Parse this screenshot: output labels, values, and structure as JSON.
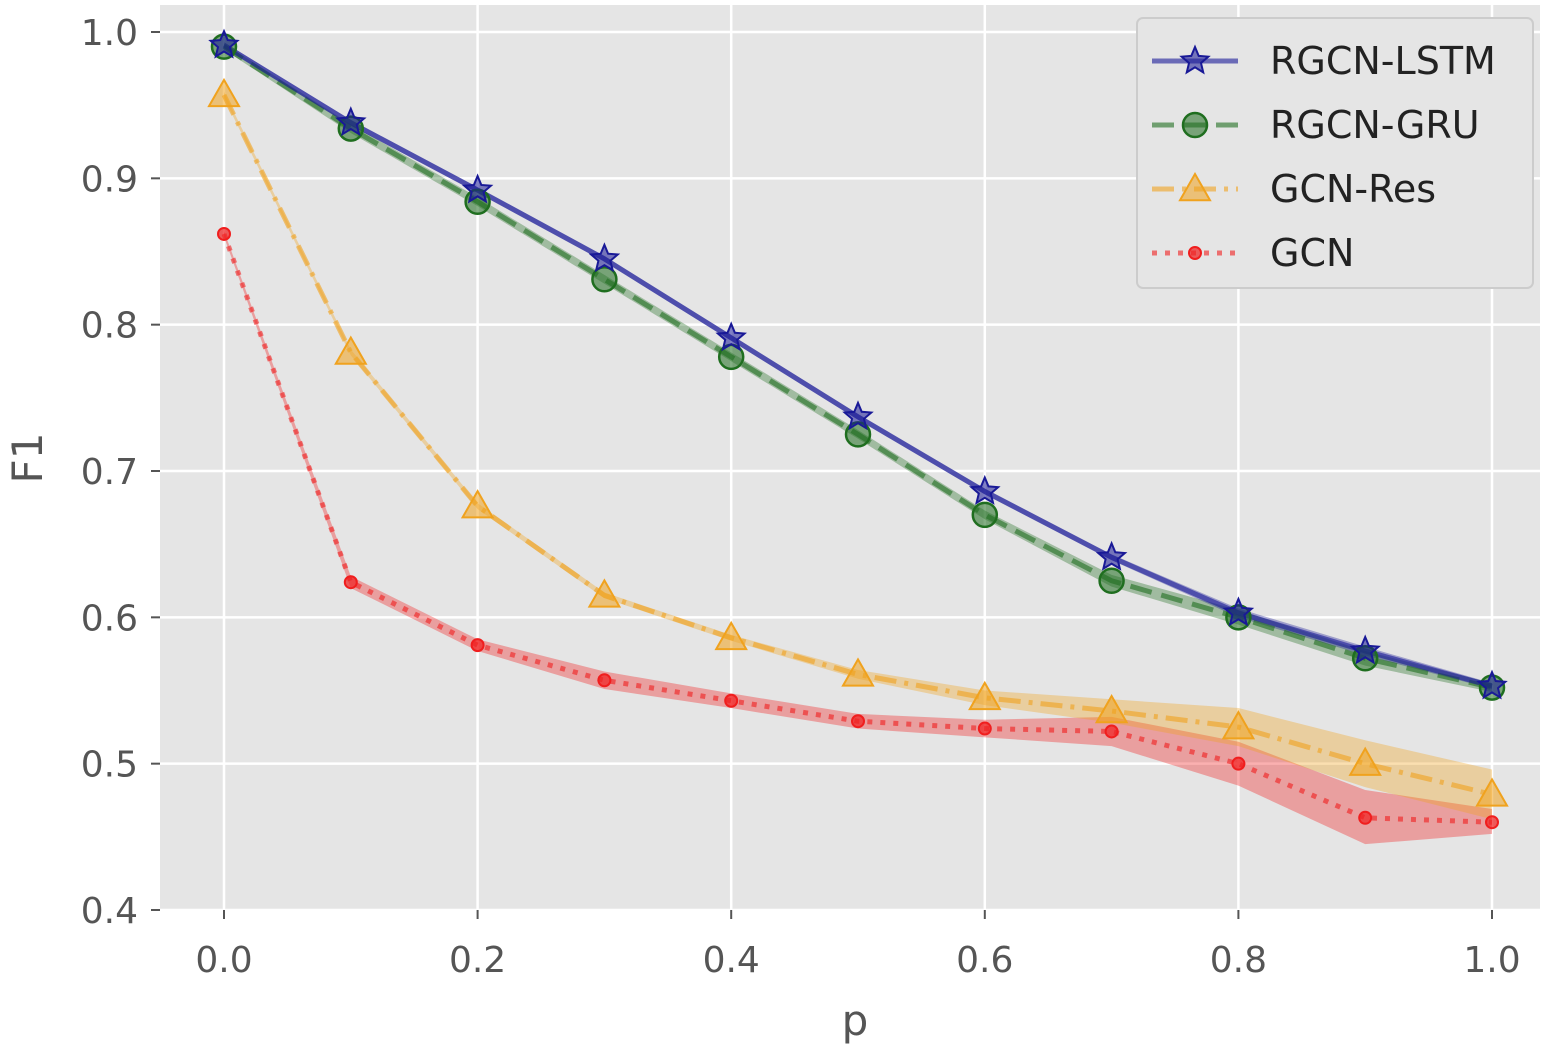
{
  "chart_data": {
    "type": "line",
    "title": "",
    "xlabel": "p",
    "ylabel": "F1",
    "xlim": [
      -0.05,
      1.05
    ],
    "ylim": [
      0.4,
      1.02
    ],
    "xticks": [
      "0.0",
      "0.2",
      "0.4",
      "0.6",
      "0.8",
      "1.0"
    ],
    "yticks": [
      "0.4",
      "0.5",
      "0.6",
      "0.7",
      "0.8",
      "0.9",
      "1.0"
    ],
    "grid": true,
    "legend_position": "top-right",
    "x": [
      0.0,
      0.1,
      0.2,
      0.3,
      0.4,
      0.5,
      0.6,
      0.7,
      0.8,
      0.9,
      1.0
    ],
    "series": [
      {
        "name": "RGCN-LSTM",
        "color": "#191997",
        "marker": "star",
        "linestyle": "solid",
        "values": [
          0.991,
          0.938,
          0.892,
          0.845,
          0.791,
          0.737,
          0.686,
          0.641,
          0.603,
          0.577,
          0.553
        ],
        "lower": [
          0.989,
          0.936,
          0.89,
          0.843,
          0.789,
          0.735,
          0.684,
          0.639,
          0.6,
          0.574,
          0.551
        ],
        "upper": [
          0.993,
          0.94,
          0.894,
          0.847,
          0.793,
          0.739,
          0.688,
          0.643,
          0.606,
          0.58,
          0.555
        ]
      },
      {
        "name": "RGCN-GRU",
        "color": "#1f6e1f",
        "marker": "circle",
        "linestyle": "dashed",
        "values": [
          0.99,
          0.934,
          0.884,
          0.831,
          0.778,
          0.725,
          0.67,
          0.625,
          0.6,
          0.572,
          0.552
        ],
        "lower": [
          0.988,
          0.931,
          0.881,
          0.828,
          0.775,
          0.722,
          0.667,
          0.621,
          0.595,
          0.567,
          0.549
        ],
        "upper": [
          0.992,
          0.937,
          0.887,
          0.834,
          0.781,
          0.728,
          0.673,
          0.629,
          0.605,
          0.577,
          0.555
        ]
      },
      {
        "name": "GCN-Res",
        "color": "#f0a21e",
        "marker": "triangle",
        "linestyle": "dashdot",
        "values": [
          0.957,
          0.781,
          0.676,
          0.615,
          0.586,
          0.561,
          0.545,
          0.536,
          0.525,
          0.5,
          0.479
        ],
        "lower": [
          0.955,
          0.779,
          0.674,
          0.613,
          0.584,
          0.558,
          0.54,
          0.528,
          0.512,
          0.484,
          0.462
        ],
        "upper": [
          0.959,
          0.783,
          0.678,
          0.617,
          0.588,
          0.564,
          0.55,
          0.544,
          0.538,
          0.516,
          0.496
        ]
      },
      {
        "name": "GCN",
        "color": "#f01e1e",
        "marker": "small-circle",
        "linestyle": "dotted",
        "values": [
          0.862,
          0.624,
          0.581,
          0.557,
          0.543,
          0.529,
          0.524,
          0.522,
          0.5,
          0.463,
          0.46
        ],
        "lower": [
          0.86,
          0.62,
          0.577,
          0.551,
          0.538,
          0.524,
          0.518,
          0.512,
          0.485,
          0.445,
          0.452
        ],
        "upper": [
          0.864,
          0.628,
          0.585,
          0.563,
          0.548,
          0.534,
          0.53,
          0.532,
          0.515,
          0.482,
          0.469
        ]
      }
    ]
  }
}
